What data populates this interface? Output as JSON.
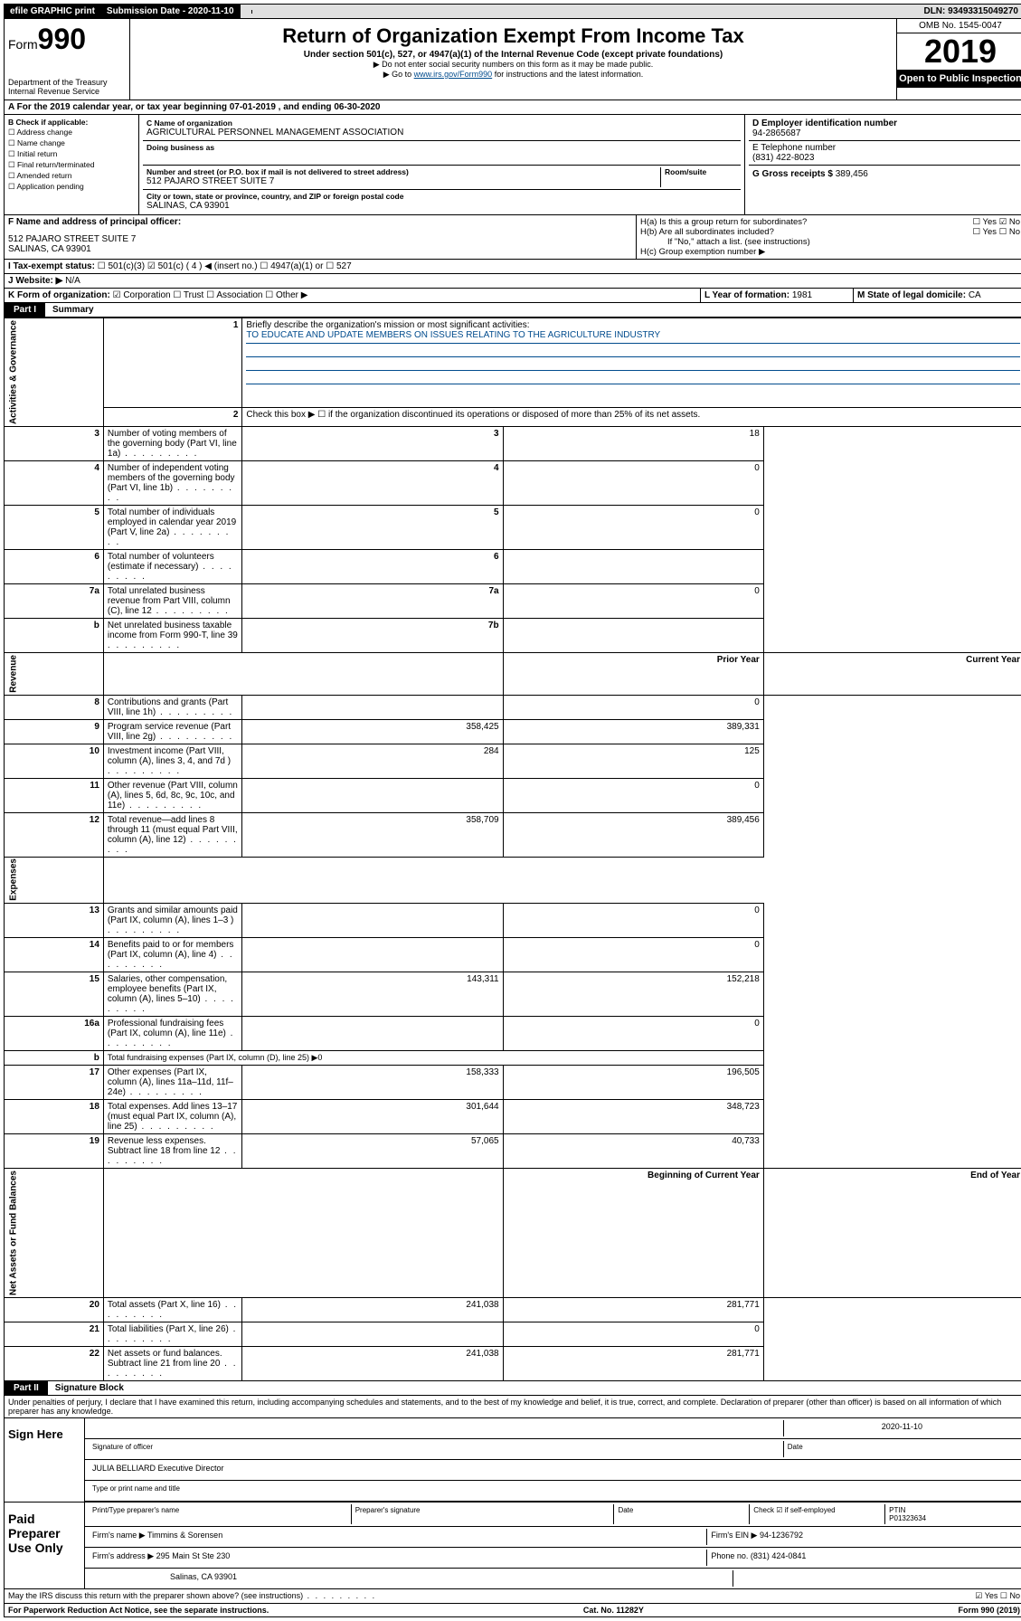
{
  "topbar": {
    "efile": "efile GRAPHIC print",
    "submission": "Submission Date - 2020-11-10",
    "dln": "DLN: 93493315049270"
  },
  "header": {
    "form_prefix": "Form",
    "form_number": "990",
    "dept": "Department of the Treasury\nInternal Revenue Service",
    "title": "Return of Organization Exempt From Income Tax",
    "subtitle": "Under section 501(c), 527, or 4947(a)(1) of the Internal Revenue Code (except private foundations)",
    "note1": "▶ Do not enter social security numbers on this form as it may be made public.",
    "note2_pre": "▶ Go to ",
    "note2_link": "www.irs.gov/Form990",
    "note2_post": " for instructions and the latest information.",
    "omb": "OMB No. 1545-0047",
    "year": "2019",
    "open_public": "Open to Public Inspection"
  },
  "line_a": "A For the 2019 calendar year, or tax year beginning 07-01-2019  , and ending 06-30-2020",
  "section_b": {
    "label": "B Check if applicable:",
    "items": [
      "Address change",
      "Name change",
      "Initial return",
      "Final return/terminated",
      "Amended return",
      "Application pending"
    ]
  },
  "section_c": {
    "name_lbl": "C Name of organization",
    "name": "AGRICULTURAL PERSONNEL MANAGEMENT ASSOCIATION",
    "dba_lbl": "Doing business as",
    "dba": "",
    "addr_lbl": "Number and street (or P.O. box if mail is not delivered to street address)",
    "room_lbl": "Room/suite",
    "addr": "512 PAJARO STREET SUITE 7",
    "city_lbl": "City or town, state or province, country, and ZIP or foreign postal code",
    "city": "SALINAS, CA  93901"
  },
  "section_d": {
    "ein_lbl": "D Employer identification number",
    "ein": "94-2865687",
    "phone_lbl": "E Telephone number",
    "phone": "(831) 422-8023",
    "gross_lbl": "G Gross receipts $",
    "gross": "389,456"
  },
  "section_f": {
    "lbl": "F Name and address of principal officer:",
    "addr1": "512 PAJARO STREET SUITE 7",
    "addr2": "SALINAS, CA  93901"
  },
  "section_h": {
    "ha": "H(a)  Is this a group return for subordinates?",
    "ha_yes": "Yes",
    "ha_no": "No",
    "hb": "H(b)  Are all subordinates included?",
    "hb_yes": "Yes",
    "hb_no": "No",
    "hb_note": "If \"No,\" attach a list. (see instructions)",
    "hc": "H(c)  Group exemption number ▶"
  },
  "line_i": {
    "lbl": "I  Tax-exempt status:",
    "o1": "501(c)(3)",
    "o2": "501(c) ( 4 ) ◀ (insert no.)",
    "o3": "4947(a)(1) or",
    "o4": "527"
  },
  "line_j": {
    "lbl": "J  Website: ▶",
    "val": "N/A"
  },
  "line_k": {
    "lbl": "K Form of organization:",
    "o1": "Corporation",
    "o2": "Trust",
    "o3": "Association",
    "o4": "Other ▶"
  },
  "line_l": {
    "lbl": "L Year of formation:",
    "val": "1981"
  },
  "line_m": {
    "lbl": "M State of legal domicile:",
    "val": "CA"
  },
  "part1": {
    "label": "Part I",
    "title": "Summary"
  },
  "summary": {
    "q1": "Briefly describe the organization's mission or most significant activities:",
    "q1_val": "TO EDUCATE AND UPDATE MEMBERS ON ISSUES RELATING TO THE AGRICULTURE INDUSTRY",
    "q2": "Check this box ▶ ☐  if the organization discontinued its operations or disposed of more than 25% of its net assets.",
    "rows_gov": [
      {
        "n": "3",
        "t": "Number of voting members of the governing body (Part VI, line 1a)",
        "c": "3",
        "v": "18"
      },
      {
        "n": "4",
        "t": "Number of independent voting members of the governing body (Part VI, line 1b)",
        "c": "4",
        "v": "0"
      },
      {
        "n": "5",
        "t": "Total number of individuals employed in calendar year 2019 (Part V, line 2a)",
        "c": "5",
        "v": "0"
      },
      {
        "n": "6",
        "t": "Total number of volunteers (estimate if necessary)",
        "c": "6",
        "v": ""
      },
      {
        "n": "7a",
        "t": "Total unrelated business revenue from Part VIII, column (C), line 12",
        "c": "7a",
        "v": "0"
      },
      {
        "n": "b",
        "t": "Net unrelated business taxable income from Form 990-T, line 39",
        "c": "7b",
        "v": ""
      }
    ],
    "prior_hdr": "Prior Year",
    "current_hdr": "Current Year",
    "rows_rev": [
      {
        "n": "8",
        "t": "Contributions and grants (Part VIII, line 1h)",
        "p": "",
        "c": "0"
      },
      {
        "n": "9",
        "t": "Program service revenue (Part VIII, line 2g)",
        "p": "358,425",
        "c": "389,331"
      },
      {
        "n": "10",
        "t": "Investment income (Part VIII, column (A), lines 3, 4, and 7d )",
        "p": "284",
        "c": "125"
      },
      {
        "n": "11",
        "t": "Other revenue (Part VIII, column (A), lines 5, 6d, 8c, 9c, 10c, and 11e)",
        "p": "",
        "c": "0"
      },
      {
        "n": "12",
        "t": "Total revenue—add lines 8 through 11 (must equal Part VIII, column (A), line 12)",
        "p": "358,709",
        "c": "389,456"
      }
    ],
    "rows_exp": [
      {
        "n": "13",
        "t": "Grants and similar amounts paid (Part IX, column (A), lines 1–3 )",
        "p": "",
        "c": "0"
      },
      {
        "n": "14",
        "t": "Benefits paid to or for members (Part IX, column (A), line 4)",
        "p": "",
        "c": "0"
      },
      {
        "n": "15",
        "t": "Salaries, other compensation, employee benefits (Part IX, column (A), lines 5–10)",
        "p": "143,311",
        "c": "152,218"
      },
      {
        "n": "16a",
        "t": "Professional fundraising fees (Part IX, column (A), line 11e)",
        "p": "",
        "c": "0"
      },
      {
        "n": "b",
        "t": "Total fundraising expenses (Part IX, column (D), line 25) ▶0",
        "p": "—",
        "c": "—"
      },
      {
        "n": "17",
        "t": "Other expenses (Part IX, column (A), lines 11a–11d, 11f–24e)",
        "p": "158,333",
        "c": "196,505"
      },
      {
        "n": "18",
        "t": "Total expenses. Add lines 13–17 (must equal Part IX, column (A), line 25)",
        "p": "301,644",
        "c": "348,723"
      },
      {
        "n": "19",
        "t": "Revenue less expenses. Subtract line 18 from line 12",
        "p": "57,065",
        "c": "40,733"
      }
    ],
    "bocy": "Beginning of Current Year",
    "eoy": "End of Year",
    "rows_net": [
      {
        "n": "20",
        "t": "Total assets (Part X, line 16)",
        "p": "241,038",
        "c": "281,771"
      },
      {
        "n": "21",
        "t": "Total liabilities (Part X, line 26)",
        "p": "",
        "c": "0"
      },
      {
        "n": "22",
        "t": "Net assets or fund balances. Subtract line 21 from line 20",
        "p": "241,038",
        "c": "281,771"
      }
    ],
    "vlabels": {
      "gov": "Activities & Governance",
      "rev": "Revenue",
      "exp": "Expenses",
      "net": "Net Assets or Fund Balances"
    }
  },
  "part2": {
    "label": "Part II",
    "title": "Signature Block"
  },
  "perjury": "Under penalties of perjury, I declare that I have examined this return, including accompanying schedules and statements, and to the best of my knowledge and belief, it is true, correct, and complete. Declaration of preparer (other than officer) is based on all information of which preparer has any knowledge.",
  "sign": {
    "here": "Sign Here",
    "date": "2020-11-10",
    "date_lbl": "Date",
    "sig_lbl": "Signature of officer",
    "name": "JULIA BELLIARD  Executive Director",
    "name_lbl": "Type or print name and title"
  },
  "paid": {
    "label": "Paid Preparer Use Only",
    "h1": "Print/Type preparer's name",
    "h2": "Preparer's signature",
    "h3": "Date",
    "h4_pre": "Check ☑ if self-employed",
    "h5": "PTIN",
    "ptin": "P01323634",
    "firm_lbl": "Firm's name  ▶",
    "firm": "Timmins & Sorensen",
    "ein_lbl": "Firm's EIN ▶",
    "ein": "94-1236792",
    "addr_lbl": "Firm's address ▶",
    "addr1": "295 Main St Ste 230",
    "addr2": "Salinas, CA  93901",
    "phone_lbl": "Phone no.",
    "phone": "(831) 424-0841"
  },
  "discuss": {
    "q": "May the IRS discuss this return with the preparer shown above? (see instructions)",
    "yes": "Yes",
    "no": "No"
  },
  "footer": {
    "left": "For Paperwork Reduction Act Notice, see the separate instructions.",
    "mid": "Cat. No. 11282Y",
    "right": "Form 990 (2019)"
  }
}
